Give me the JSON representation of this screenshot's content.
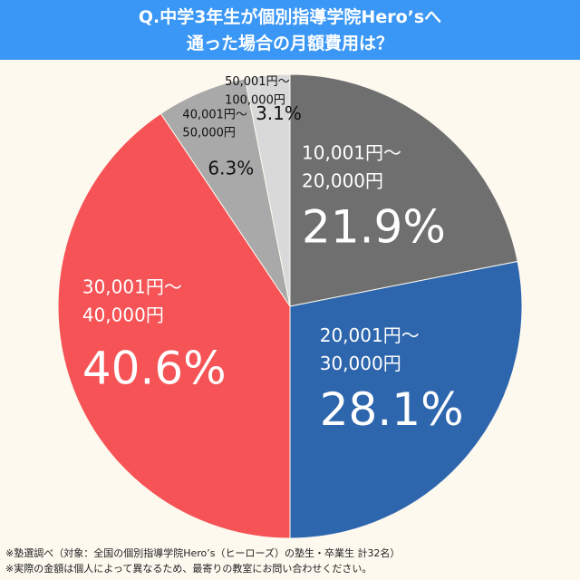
{
  "header": {
    "line1": "Q.中学3年生が個別指導学院Hero’sへ",
    "line2": "通った場合の月額費用は？"
  },
  "chart_data": {
    "type": "pie",
    "title": "Q.中学3年生が個別指導学院Hero’sへ通った場合の月額費用は？",
    "slices": [
      {
        "range": [
          "10,001円～",
          "20,000円"
        ],
        "value": 21.9,
        "label": "21.9%",
        "color": "#6f6f6f"
      },
      {
        "range": [
          "20,001円～",
          "30,000円"
        ],
        "value": 28.1,
        "label": "28.1%",
        "color": "#2e66ad"
      },
      {
        "range": [
          "30,001円～",
          "40,000円"
        ],
        "value": 40.6,
        "label": "40.6%",
        "color": "#f55356"
      },
      {
        "range": [
          "40,001円～",
          "50,000円"
        ],
        "value": 6.3,
        "label": "6.3%",
        "color": "#a9a9a9"
      },
      {
        "range": [
          "50,001円～",
          "100,000円"
        ],
        "value": 3.1,
        "label": "3.1%",
        "color": "#d9d9d9"
      }
    ]
  },
  "notes": {
    "line1": "※塾選調べ（対象：全国の個別指導学院Hero’s（ヒーローズ）の塾生・卒業生 計32名）",
    "line2": "※実際の金額は個人によって異なるため、最寄りの教室にお問い合わせください。"
  }
}
